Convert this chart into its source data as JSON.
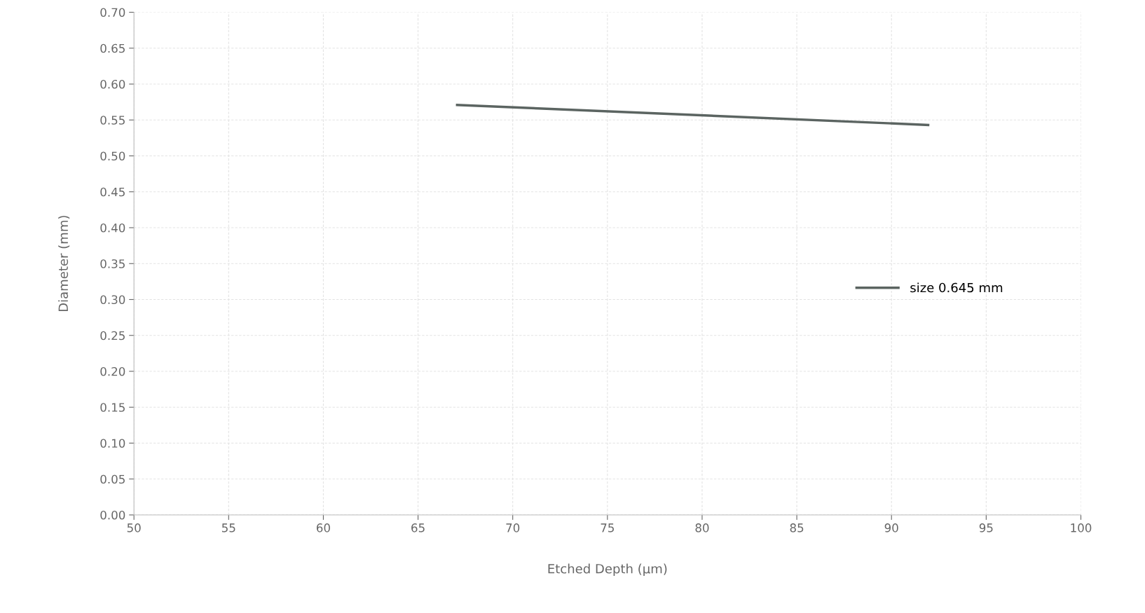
{
  "chart_data": {
    "type": "line",
    "xlabel": "Etched Depth (µm)",
    "ylabel": "Diameter (mm)",
    "x": [
      67,
      92
    ],
    "series": [
      {
        "name": "size 0.645 mm",
        "color": "#5b6461",
        "values": [
          0.571,
          0.543
        ]
      }
    ],
    "xlim": [
      50,
      100
    ],
    "xticks": [
      50,
      55,
      60,
      65,
      70,
      75,
      80,
      85,
      90,
      95,
      100
    ],
    "ylim": [
      0,
      0.7
    ],
    "yticks": [
      {
        "value": 0,
        "label": "0.00"
      },
      {
        "value": 0.05,
        "label": "0.05"
      },
      {
        "value": 0.1,
        "label": "0.10"
      },
      {
        "value": 0.15,
        "label": "0.15"
      },
      {
        "value": 0.2,
        "label": "0.20"
      },
      {
        "value": 0.25,
        "label": "0.25"
      },
      {
        "value": 0.3,
        "label": "0.30"
      },
      {
        "value": 0.35,
        "label": "0.35"
      },
      {
        "value": 0.4,
        "label": "0.40"
      },
      {
        "value": 0.45,
        "label": "0.45"
      },
      {
        "value": 0.5,
        "label": "0.50"
      },
      {
        "value": 0.55,
        "label": "0.55"
      },
      {
        "value": 0.6,
        "label": "0.60"
      },
      {
        "value": 0.65,
        "label": "0.65"
      },
      {
        "value": 0.7,
        "label": "0.70"
      }
    ],
    "grid": true,
    "legend": "right",
    "marker": "none",
    "line_style": "solid"
  }
}
